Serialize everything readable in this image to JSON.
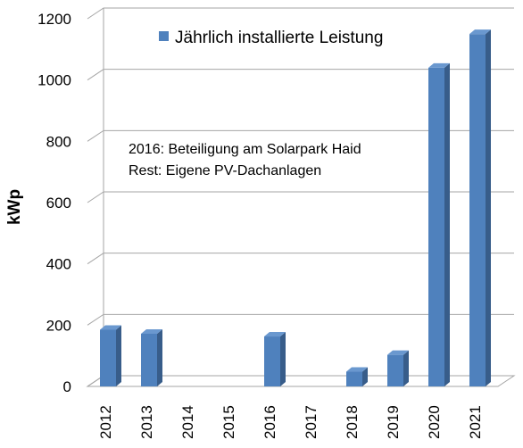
{
  "chart_data": {
    "type": "bar",
    "categories": [
      "2012",
      "2013",
      "2014",
      "2015",
      "2016",
      "2017",
      "2018",
      "2019",
      "2020",
      "2021"
    ],
    "series": [
      {
        "name": "Jährlich installierte Leistung",
        "values": [
          185,
          172,
          0,
          0,
          163,
          0,
          48,
          103,
          1040,
          1150
        ]
      }
    ],
    "xlabel": "",
    "ylabel": "kWp",
    "ylim": [
      0,
      1200
    ],
    "yticks": [
      0,
      200,
      400,
      600,
      800,
      1000,
      1200
    ],
    "grid": true,
    "legend_position": "top",
    "annotation": [
      "2016: Beteiligung am Solarpark Haid",
      "Rest: Eigene PV-Dachanlagen"
    ],
    "colors": {
      "bar_front": "#4f81bd",
      "bar_side": "#385d8a",
      "bar_top": "#6a98cf",
      "gridline": "#a6a6a6"
    }
  }
}
